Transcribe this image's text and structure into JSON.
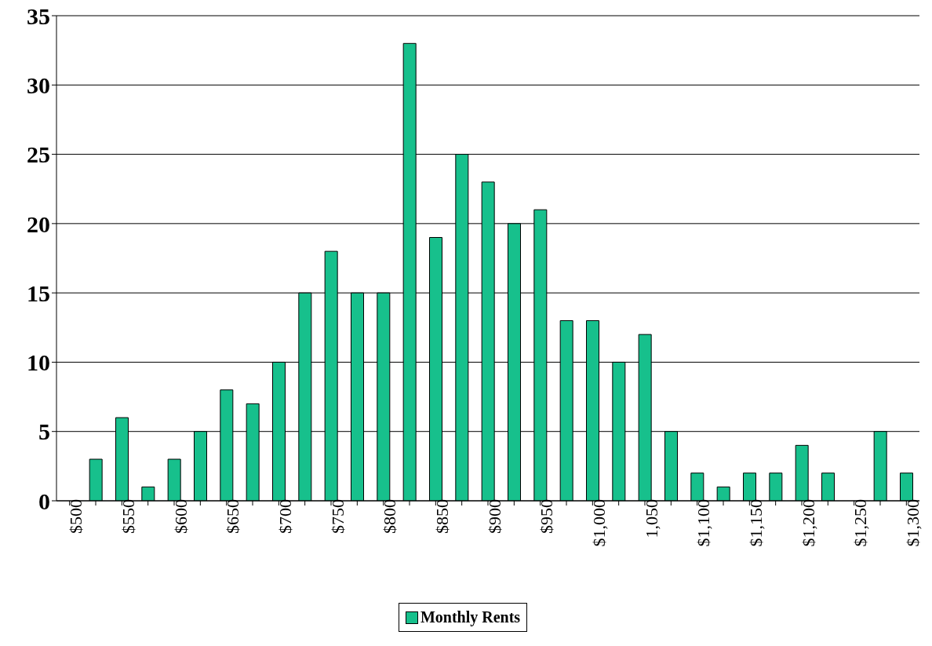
{
  "chart_data": {
    "type": "bar",
    "categories": [
      "$500",
      null,
      "$550",
      null,
      "$600",
      null,
      "$650",
      null,
      "$700",
      null,
      "$750",
      null,
      "$800",
      null,
      "$850",
      null,
      "$900",
      null,
      "$950",
      null,
      "$1,000",
      null,
      "1,050",
      null,
      "$1,100",
      null,
      "$1,150",
      null,
      "$1,200",
      null,
      "$1,250",
      null,
      "$1,300"
    ],
    "series": [
      {
        "name": "Monthly Rents",
        "color": "#17c08c",
        "values": [
          0,
          3,
          6,
          1,
          3,
          5,
          8,
          7,
          10,
          15,
          18,
          15,
          15,
          33,
          19,
          25,
          23,
          20,
          21,
          13,
          13,
          10,
          12,
          5,
          2,
          1,
          2,
          2,
          4,
          2,
          0,
          5,
          2
        ]
      }
    ],
    "ylim": [
      0,
      35
    ],
    "yticks": [
      0,
      5,
      10,
      15,
      20,
      25,
      30,
      35
    ],
    "grid": "y",
    "legend": "bottom"
  }
}
